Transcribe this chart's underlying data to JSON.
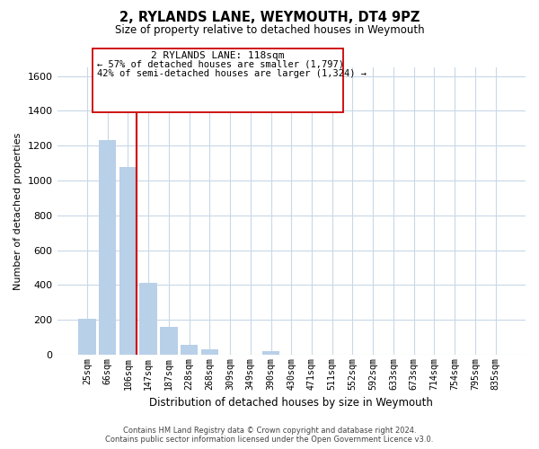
{
  "title": "2, RYLANDS LANE, WEYMOUTH, DT4 9PZ",
  "subtitle": "Size of property relative to detached houses in Weymouth",
  "xlabel": "Distribution of detached houses by size in Weymouth",
  "ylabel": "Number of detached properties",
  "bar_labels": [
    "25sqm",
    "66sqm",
    "106sqm",
    "147sqm",
    "187sqm",
    "228sqm",
    "268sqm",
    "309sqm",
    "349sqm",
    "390sqm",
    "430sqm",
    "471sqm",
    "511sqm",
    "552sqm",
    "592sqm",
    "633sqm",
    "673sqm",
    "714sqm",
    "754sqm",
    "795sqm",
    "835sqm"
  ],
  "bar_values": [
    205,
    1230,
    1075,
    410,
    160,
    55,
    28,
    0,
    0,
    20,
    0,
    0,
    0,
    0,
    0,
    0,
    0,
    0,
    0,
    0,
    0
  ],
  "bar_color": "#b8d0e8",
  "vline_color": "#cc0000",
  "vline_x_index": 2,
  "ylim": [
    0,
    1650
  ],
  "yticks": [
    0,
    200,
    400,
    600,
    800,
    1000,
    1200,
    1400,
    1600
  ],
  "annotation_title": "2 RYLANDS LANE: 118sqm",
  "annotation_line1": "← 57% of detached houses are smaller (1,797)",
  "annotation_line2": "42% of semi-detached houses are larger (1,324) →",
  "footer1": "Contains HM Land Registry data © Crown copyright and database right 2024.",
  "footer2": "Contains public sector information licensed under the Open Government Licence v3.0.",
  "bg_color": "#ffffff",
  "grid_color": "#c8d8e8"
}
